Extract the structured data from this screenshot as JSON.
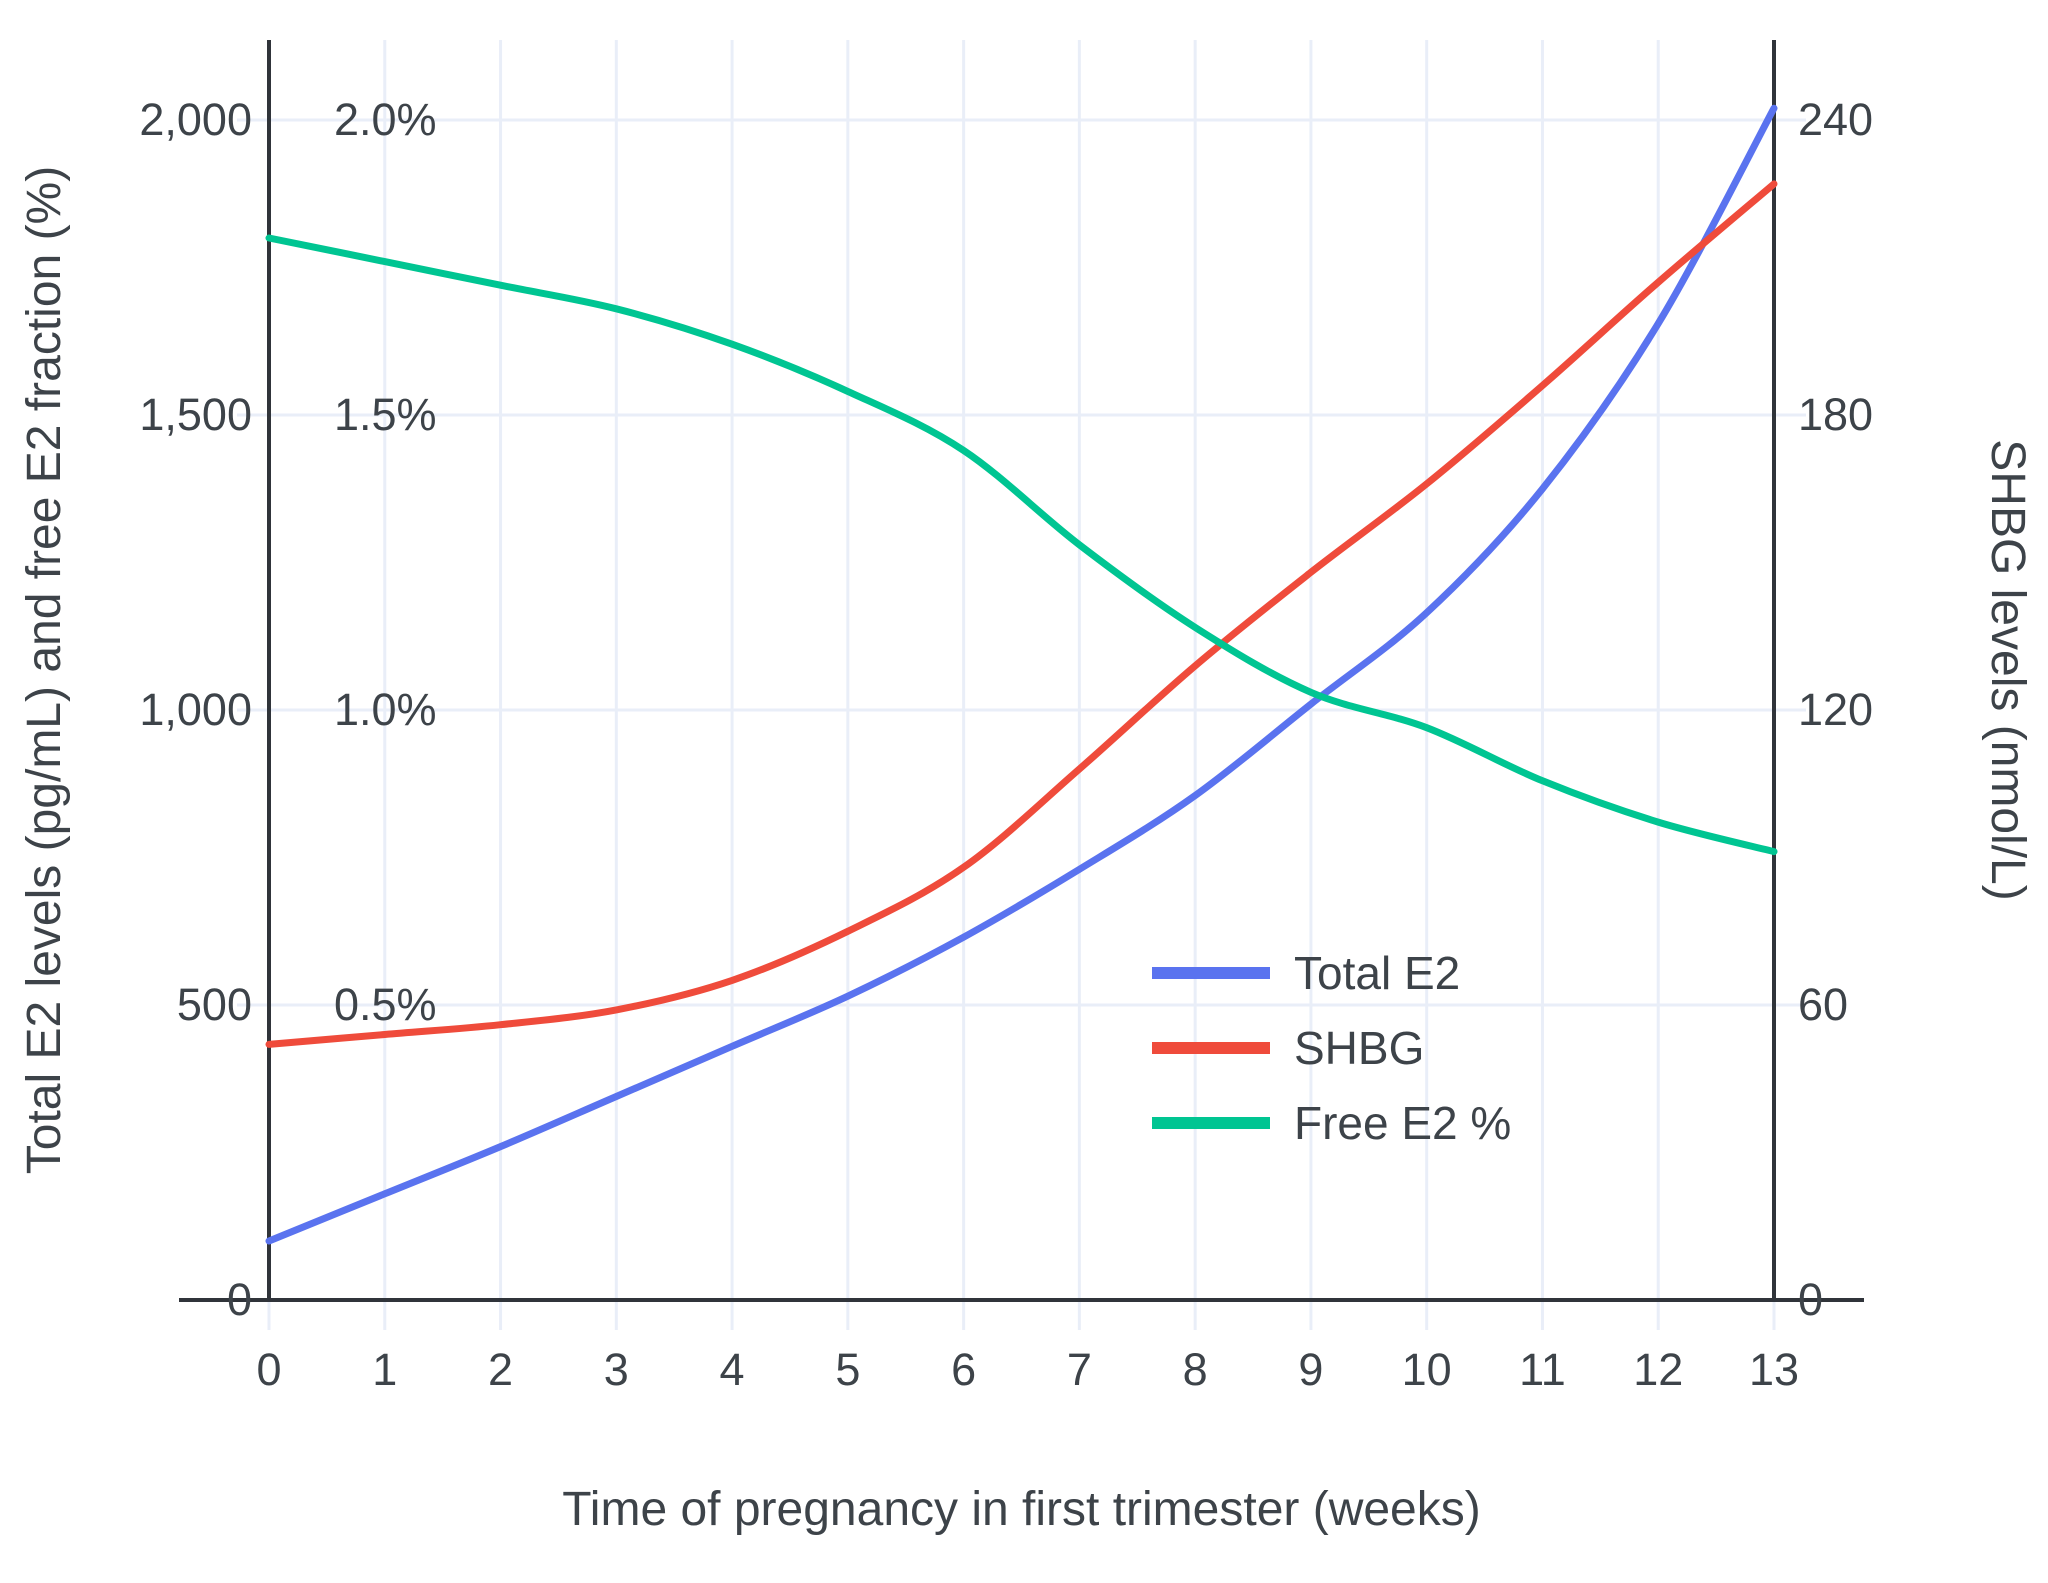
{
  "chart_data": {
    "type": "line",
    "title": "",
    "xlabel": "Time of pregnancy in first trimester (weeks)",
    "ylabel_left": "Total E2 levels (pg/mL) and free E2 fraction (%)",
    "ylabel_right": "SHBG levels (nmol/L)",
    "x": [
      0,
      1,
      2,
      3,
      4,
      5,
      6,
      7,
      8,
      9,
      10,
      11,
      12,
      13
    ],
    "xlim": [
      0,
      13
    ],
    "ylim_left": [
      0,
      2000
    ],
    "ylim_right": [
      0,
      240
    ],
    "grid": true,
    "legend_position": "inside-lower-right",
    "x_ticks": [
      "0",
      "1",
      "2",
      "3",
      "4",
      "5",
      "6",
      "7",
      "8",
      "9",
      "10",
      "11",
      "12",
      "13"
    ],
    "left_ticks": [
      {
        "value": 0,
        "label": "0"
      },
      {
        "value": 500,
        "label": "500"
      },
      {
        "value": 1000,
        "label": "1,000"
      },
      {
        "value": 1500,
        "label": "1,500"
      },
      {
        "value": 2000,
        "label": "2,000"
      }
    ],
    "left_pct_annotations": [
      {
        "value": 500,
        "label": "0.5%"
      },
      {
        "value": 1000,
        "label": "1.0%"
      },
      {
        "value": 1500,
        "label": "1.5%"
      },
      {
        "value": 2000,
        "label": "2.0%"
      }
    ],
    "right_ticks": [
      {
        "value": 0,
        "label": "0"
      },
      {
        "value": 60,
        "label": "60"
      },
      {
        "value": 120,
        "label": "120"
      },
      {
        "value": 180,
        "label": "180"
      },
      {
        "value": 240,
        "label": "240"
      }
    ],
    "series": [
      {
        "name": "Total E2",
        "axis": "left",
        "unit": "pg/mL",
        "color": "#5a73ef",
        "values": [
          100,
          180,
          260,
          345,
          430,
          515,
          615,
          730,
          855,
          1010,
          1165,
          1375,
          1655,
          2020
        ]
      },
      {
        "name": "SHBG",
        "axis": "right",
        "unit": "nmol/L",
        "color": "#ef4b3b",
        "values": [
          52,
          54,
          56,
          59,
          65,
          75,
          88,
          108,
          129,
          148,
          166,
          186,
          207,
          227
        ]
      },
      {
        "name": "Free E2 %",
        "axis": "left-percent",
        "unit": "%",
        "color": "#00c592",
        "values": [
          1.8,
          1.76,
          1.72,
          1.68,
          1.62,
          1.54,
          1.44,
          1.28,
          1.14,
          1.03,
          0.97,
          0.88,
          0.81,
          0.76
        ]
      }
    ]
  },
  "style_colors": {
    "axis_line": "#30343a",
    "grid_line": "#e9eef8",
    "text": "#3d4349",
    "background": "#ffffff"
  }
}
